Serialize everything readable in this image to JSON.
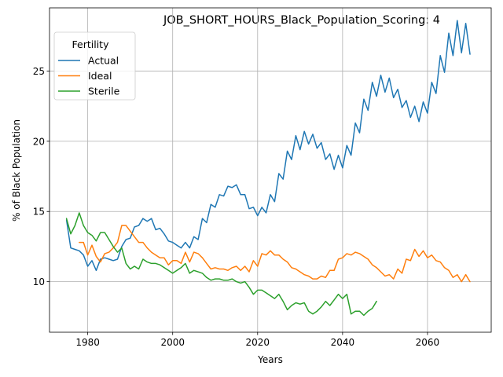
{
  "chart_data": {
    "type": "line",
    "title": "JOB_SHORT_HOURS_Black_Population_Scoring: 4",
    "xlabel": "Years",
    "ylabel": "% of Black Population",
    "xlim": [
      1971,
      2075
    ],
    "ylim": [
      6.4,
      29.5
    ],
    "xticks": [
      1980,
      2000,
      2020,
      2040,
      2060
    ],
    "yticks": [
      10,
      15,
      20,
      25
    ],
    "grid": true,
    "legend": {
      "title": "Fertility",
      "placement": "top-left"
    },
    "series": [
      {
        "name": "Actual",
        "color": "#1f77b4",
        "x": [
          1975,
          1976,
          1977,
          1978,
          1979,
          1980,
          1981,
          1982,
          1983,
          1984,
          1985,
          1986,
          1987,
          1988,
          1989,
          1990,
          1991,
          1992,
          1993,
          1994,
          1995,
          1996,
          1997,
          1998,
          1999,
          2000,
          2001,
          2002,
          2003,
          2004,
          2005,
          2006,
          2007,
          2008,
          2009,
          2010,
          2011,
          2012,
          2013,
          2014,
          2015,
          2016,
          2017,
          2018,
          2019,
          2020,
          2021,
          2022,
          2023,
          2024,
          2025,
          2026,
          2027,
          2028,
          2029,
          2030,
          2031,
          2032,
          2033,
          2034,
          2035,
          2036,
          2037,
          2038,
          2039,
          2040,
          2041,
          2042,
          2043,
          2044,
          2045,
          2046,
          2047,
          2048,
          2049,
          2050,
          2051,
          2052,
          2053,
          2054,
          2055,
          2056,
          2057,
          2058,
          2059,
          2060,
          2061,
          2062,
          2063,
          2064,
          2065,
          2066,
          2067,
          2068,
          2069,
          2070
        ],
        "y": [
          14.4,
          12.4,
          12.3,
          12.2,
          11.9,
          11.1,
          11.5,
          10.8,
          11.6,
          11.7,
          11.6,
          11.5,
          11.6,
          12.5,
          13.0,
          13.1,
          13.9,
          14.0,
          14.5,
          14.3,
          14.5,
          13.7,
          13.8,
          13.4,
          12.9,
          12.8,
          12.6,
          12.4,
          12.8,
          12.4,
          13.2,
          13.0,
          14.5,
          14.2,
          15.5,
          15.3,
          16.2,
          16.1,
          16.8,
          16.7,
          16.9,
          16.2,
          16.2,
          15.2,
          15.3,
          14.7,
          15.3,
          14.9,
          16.2,
          15.7,
          17.7,
          17.3,
          19.3,
          18.7,
          20.4,
          19.4,
          20.7,
          19.8,
          20.5,
          19.5,
          19.9,
          18.7,
          19.1,
          18.0,
          19.0,
          18.1,
          19.7,
          19.0,
          21.3,
          20.6,
          23.0,
          22.2,
          24.2,
          23.2,
          24.7,
          23.5,
          24.5,
          23.1,
          23.7,
          22.4,
          22.9,
          21.7,
          22.5,
          21.4,
          22.8,
          22.0,
          24.2,
          23.4,
          26.1,
          24.9,
          27.7,
          26.1,
          28.6,
          26.3,
          28.4,
          26.2
        ]
      },
      {
        "name": "Ideal",
        "color": "#ff7f0e",
        "x": [
          1978,
          1979,
          1980,
          1981,
          1982,
          1983,
          1984,
          1985,
          1986,
          1987,
          1988,
          1989,
          1990,
          1991,
          1992,
          1993,
          1994,
          1995,
          1996,
          1997,
          1998,
          1999,
          2000,
          2001,
          2002,
          2003,
          2004,
          2005,
          2006,
          2007,
          2008,
          2009,
          2010,
          2011,
          2012,
          2013,
          2014,
          2015,
          2016,
          2017,
          2018,
          2019,
          2020,
          2021,
          2022,
          2023,
          2024,
          2025,
          2026,
          2027,
          2028,
          2029,
          2030,
          2031,
          2032,
          2033,
          2034,
          2035,
          2036,
          2037,
          2038,
          2039,
          2040,
          2041,
          2042,
          2043,
          2044,
          2045,
          2046,
          2047,
          2048,
          2049,
          2050,
          2051,
          2052,
          2053,
          2054,
          2055,
          2056,
          2057,
          2058,
          2059,
          2060,
          2061,
          2062,
          2063,
          2064,
          2065,
          2066,
          2067,
          2068,
          2069,
          2070
        ],
        "y": [
          12.8,
          12.8,
          11.9,
          12.6,
          11.8,
          11.4,
          12.0,
          12.1,
          12.4,
          12.8,
          14.0,
          14.0,
          13.6,
          13.2,
          12.8,
          12.8,
          12.4,
          12.1,
          11.9,
          11.7,
          11.7,
          11.2,
          11.5,
          11.5,
          11.3,
          12.1,
          11.4,
          12.1,
          12.0,
          11.7,
          11.3,
          10.9,
          11.0,
          10.9,
          10.9,
          10.8,
          11.0,
          11.1,
          10.8,
          11.1,
          10.7,
          11.5,
          11.1,
          12.0,
          11.9,
          12.2,
          11.9,
          11.9,
          11.6,
          11.4,
          11.0,
          10.9,
          10.7,
          10.5,
          10.4,
          10.2,
          10.2,
          10.4,
          10.3,
          10.8,
          10.8,
          11.6,
          11.7,
          12.0,
          11.9,
          12.1,
          12.0,
          11.8,
          11.6,
          11.2,
          11.0,
          10.7,
          10.4,
          10.5,
          10.2,
          10.9,
          10.6,
          11.6,
          11.5,
          12.3,
          11.8,
          12.2,
          11.7,
          11.9,
          11.5,
          11.4,
          11.0,
          10.8,
          10.3,
          10.5,
          10.0,
          10.5,
          10.0
        ]
      },
      {
        "name": "Sterile",
        "color": "#2ca02c",
        "x": [
          1975,
          1976,
          1977,
          1978,
          1979,
          1980,
          1981,
          1982,
          1983,
          1984,
          1985,
          1986,
          1987,
          1988,
          1989,
          1990,
          1991,
          1992,
          1993,
          1994,
          1995,
          1996,
          1997,
          1998,
          1999,
          2000,
          2001,
          2002,
          2003,
          2004,
          2005,
          2006,
          2007,
          2008,
          2009,
          2010,
          2011,
          2012,
          2013,
          2014,
          2015,
          2016,
          2017,
          2018,
          2019,
          2020,
          2021,
          2022,
          2023,
          2024,
          2025,
          2026,
          2027,
          2028,
          2029,
          2030,
          2031,
          2032,
          2033,
          2034,
          2035,
          2036,
          2037,
          2038,
          2039,
          2040,
          2041,
          2042,
          2043,
          2044,
          2045,
          2046,
          2047,
          2048
        ],
        "y": [
          14.5,
          13.4,
          14.0,
          14.9,
          14.0,
          13.5,
          13.3,
          12.9,
          13.5,
          13.5,
          13.0,
          12.5,
          12.1,
          12.4,
          11.3,
          10.9,
          11.1,
          10.9,
          11.6,
          11.4,
          11.3,
          11.3,
          11.2,
          11.0,
          10.8,
          10.6,
          10.8,
          11.0,
          11.3,
          10.6,
          10.8,
          10.7,
          10.6,
          10.3,
          10.1,
          10.2,
          10.2,
          10.1,
          10.1,
          10.2,
          10.0,
          9.9,
          10.0,
          9.6,
          9.1,
          9.4,
          9.4,
          9.2,
          9.0,
          8.8,
          9.1,
          8.6,
          8.0,
          8.3,
          8.5,
          8.4,
          8.5,
          7.9,
          7.7,
          7.9,
          8.2,
          8.6,
          8.3,
          8.7,
          9.1,
          8.8,
          9.1,
          7.7,
          7.9,
          7.9,
          7.6,
          7.9,
          8.1,
          8.6
        ]
      }
    ]
  }
}
